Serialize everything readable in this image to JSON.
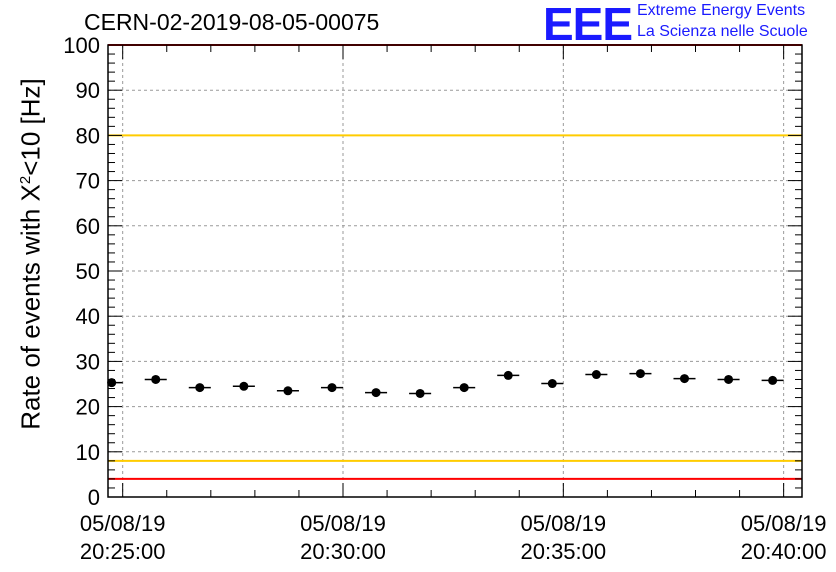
{
  "chart_data": {
    "type": "scatter",
    "title": "CERN-02-2019-08-05-00075",
    "ylabel": "Rate of events with X²<10 [Hz]",
    "ylabel_main": "Rate of events with X",
    "ylabel_sup": "2",
    "ylabel_tail": "<10 [Hz]",
    "xlabel": "",
    "ylim": [
      0,
      100
    ],
    "yticks": [
      0,
      10,
      20,
      30,
      40,
      50,
      60,
      70,
      80,
      90,
      100
    ],
    "xticks": [
      {
        "date": "05/08/19",
        "time": "20:25:00",
        "seconds": 0
      },
      {
        "date": "05/08/19",
        "time": "20:30:00",
        "seconds": 300
      },
      {
        "date": "05/08/19",
        "time": "20:35:00",
        "seconds": 600
      },
      {
        "date": "05/08/19",
        "time": "20:40:00",
        "seconds": 900
      }
    ],
    "xlim_seconds": [
      -20,
      925
    ],
    "bin_half_width_seconds": 15,
    "grid": true,
    "reference_lines": [
      {
        "value": 100,
        "color": "#ff0000"
      },
      {
        "value": 80,
        "color": "#ffcc00"
      },
      {
        "value": 8,
        "color": "#ffcc00"
      },
      {
        "value": 4,
        "color": "#ff0000"
      }
    ],
    "series": [
      {
        "x_seconds": [
          -15,
          45,
          105,
          165,
          225,
          285,
          345,
          405,
          465,
          525,
          585,
          645,
          705,
          765,
          825,
          885
        ],
        "y": [
          25.3,
          26.0,
          24.2,
          24.5,
          23.5,
          24.2,
          23.1,
          22.9,
          24.2,
          26.9,
          25.1,
          27.1,
          27.3,
          26.2,
          26.0,
          25.8
        ]
      }
    ]
  },
  "logo": {
    "mark": "EEE",
    "line1": "Extreme Energy Events",
    "line2": "La Scienza nelle Scuole",
    "color": "#1a1aff"
  }
}
